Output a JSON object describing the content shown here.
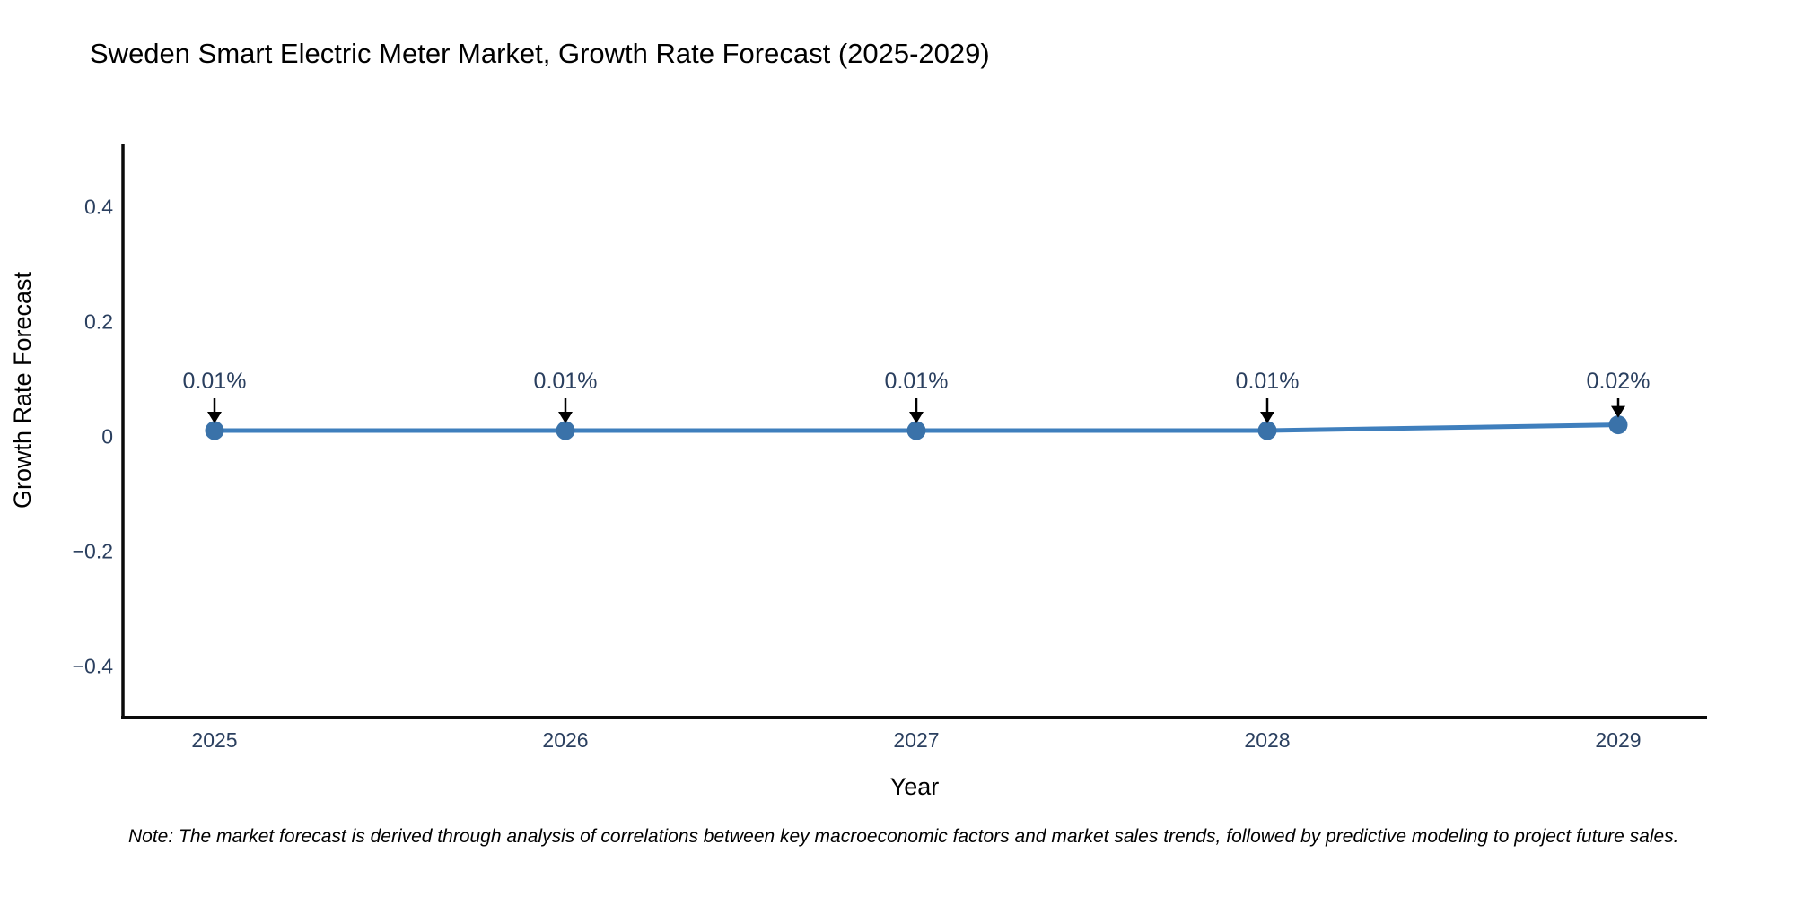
{
  "chart_data": {
    "type": "line",
    "title": "Sweden Smart Electric Meter Market, Growth Rate Forecast (2025-2029)",
    "xlabel": "Year",
    "ylabel": "Growth Rate Forecast",
    "categories": [
      "2025",
      "2026",
      "2027",
      "2028",
      "2029"
    ],
    "series": [
      {
        "name": "Growth Rate Forecast",
        "values": [
          0.01,
          0.01,
          0.01,
          0.01,
          0.02
        ],
        "point_labels": [
          "0.01%",
          "0.01%",
          "0.01%",
          "0.01%",
          "0.02%"
        ]
      }
    ],
    "ylim": [
      -0.49,
      0.51
    ],
    "yticks": [
      0.4,
      0.2,
      0,
      -0.2,
      -0.4
    ],
    "ytick_labels": [
      "0.4",
      "0.2",
      "0",
      "−0.2",
      "−0.4"
    ],
    "grid": false,
    "legend": "none",
    "colors": {
      "line": "#3f7fbd",
      "marker": "#3a72a9",
      "arrow": "#000000",
      "text": "#2a3f5f",
      "spine": "#0a0a0a",
      "note_text": "#141414",
      "background": "#ffffff"
    }
  },
  "note": {
    "text": "Note: The market forecast is derived through analysis of correlations between key macroeconomic factors and market sales trends, followed by predictive modeling to project future sales."
  }
}
